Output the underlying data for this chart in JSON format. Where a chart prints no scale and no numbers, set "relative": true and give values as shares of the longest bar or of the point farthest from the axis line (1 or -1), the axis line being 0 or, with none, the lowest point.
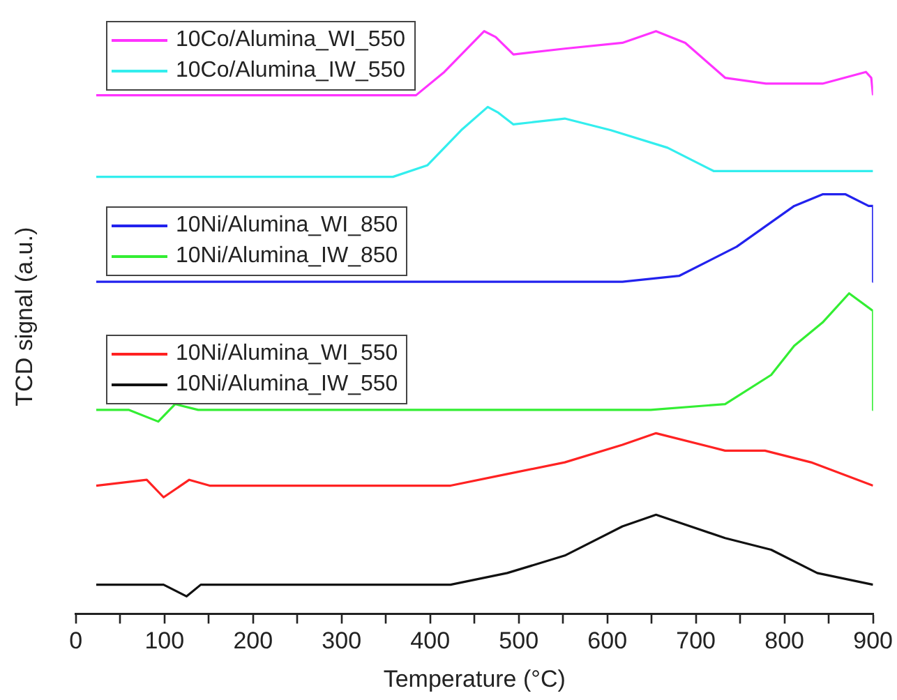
{
  "chart_data": {
    "type": "line",
    "xlabel": "Temperature (°C)",
    "ylabel": "TCD signal ($_{}$a.u.)",
    "relative": true,
    "legend": "top left",
    "marker": "none",
    "line_style": "solid",
    "grid": false,
    "tick_labels": "x",
    "xlim": [
      0,
      900
    ],
    "xticks": [
      0,
      {
        "value": 50,
        "label": null
      },
      100,
      {
        "value": 150,
        "label": null
      },
      200,
      {
        "value": 250,
        "label": null
      },
      300,
      {
        "value": 350,
        "label": null
      },
      400,
      {
        "value": 450,
        "label": null
      },
      500,
      {
        "value": 550,
        "label": null
      },
      600,
      {
        "value": 650,
        "label": null
      },
      700,
      {
        "value": 750,
        "label": null
      },
      800,
      {
        "value": 850,
        "label": null
      },
      900
    ],
    "series": [
      {
        "name": "10Co/Alumina_WI_550",
        "color": "#ff33ff",
        "x": [
          23,
          164,
          384,
          416,
          461,
          474,
          494,
          552,
          617,
          655,
          688,
          733,
          779,
          843,
          892,
          898,
          900
        ],
        "values": [
          0.89,
          0.89,
          0.89,
          0.93,
          1.0,
          0.99,
          0.96,
          0.97,
          0.98,
          1.0,
          0.98,
          0.92,
          0.91,
          0.91,
          0.93,
          0.92,
          0.89
        ]
      },
      {
        "name": "10Co/Alumina_IW_550",
        "color": "#33eeee",
        "x": [
          23,
          358,
          397,
          435,
          465,
          477,
          494,
          552,
          604,
          668,
          720,
          778,
          900
        ],
        "values": [
          0.75,
          0.75,
          0.77,
          0.83,
          0.87,
          0.86,
          0.84,
          0.85,
          0.83,
          0.8,
          0.76,
          0.76,
          0.76
        ]
      },
      {
        "name": "10Ni/Alumina_WI_850",
        "color": "#2222ee",
        "x": [
          23,
          617,
          681,
          746,
          811,
          843,
          869,
          895,
          900,
          900
        ],
        "values": [
          0.57,
          0.57,
          0.58,
          0.63,
          0.7,
          0.72,
          0.72,
          0.7,
          0.7,
          0.57
        ]
      },
      {
        "name": "10Ni/Alumina_IW_850",
        "color": "#33ee33",
        "x": [
          23,
          60,
          93,
          112,
          138,
          649,
          733,
          785,
          811,
          843,
          873,
          900,
          900
        ],
        "values": [
          0.35,
          0.35,
          0.33,
          0.36,
          0.35,
          0.35,
          0.36,
          0.41,
          0.46,
          0.5,
          0.55,
          0.52,
          0.35
        ]
      },
      {
        "name": "10Ni/Alumina_WI_550",
        "color": "#ff2222",
        "x": [
          23,
          80,
          99,
          128,
          151,
          228,
          293,
          423,
          487,
          552,
          617,
          655,
          733,
          778,
          830,
          900
        ],
        "values": [
          0.22,
          0.23,
          0.2,
          0.23,
          0.22,
          0.22,
          0.22,
          0.22,
          0.24,
          0.26,
          0.29,
          0.31,
          0.28,
          0.28,
          0.26,
          0.22
        ]
      },
      {
        "name": "10Ni/Alumina_IW_550",
        "color": "#111111",
        "x": [
          23,
          99,
          125,
          141,
          164,
          423,
          487,
          552,
          617,
          655,
          733,
          785,
          837,
          900
        ],
        "values": [
          0.05,
          0.05,
          0.03,
          0.05,
          0.05,
          0.05,
          0.07,
          0.1,
          0.15,
          0.17,
          0.13,
          0.11,
          0.07,
          0.05
        ]
      }
    ]
  }
}
